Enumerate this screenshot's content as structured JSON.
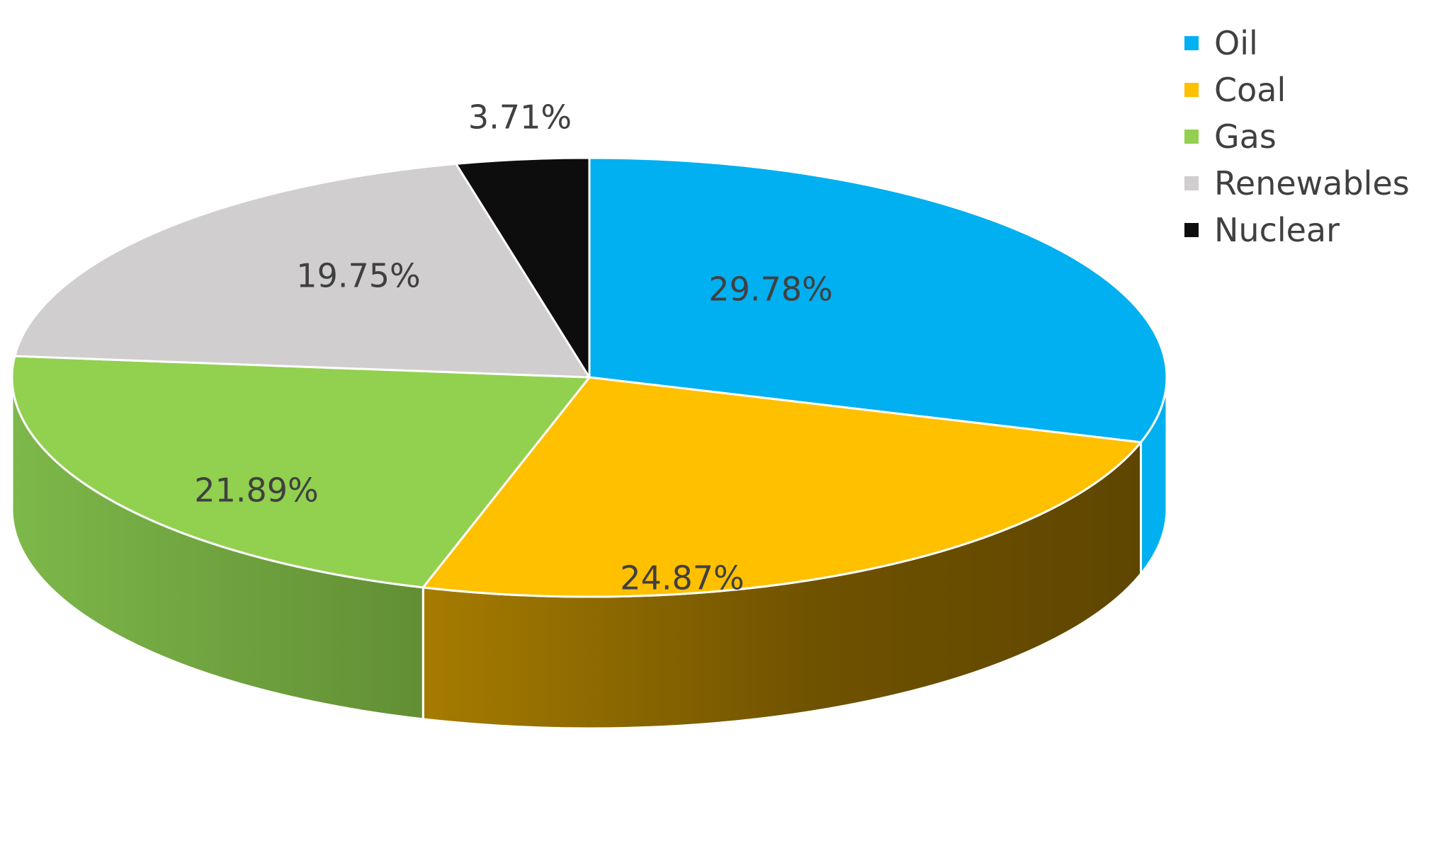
{
  "chart_data": {
    "type": "pie",
    "style": "3d",
    "legend_position": "top-right",
    "slices": [
      {
        "name": "Oil",
        "value": 29.78,
        "label": "29.78%",
        "color": "#00B0F0"
      },
      {
        "name": "Coal",
        "value": 24.87,
        "label": "24.87%",
        "color": "#FFC000"
      },
      {
        "name": "Gas",
        "value": 21.89,
        "label": "21.89%",
        "color": "#92D050"
      },
      {
        "name": "Renewables",
        "value": 19.75,
        "label": "19.75%",
        "color": "#D0CECE"
      },
      {
        "name": "Nuclear",
        "value": 3.71,
        "label": "3.71%",
        "color": "#0D0D0D"
      }
    ]
  }
}
